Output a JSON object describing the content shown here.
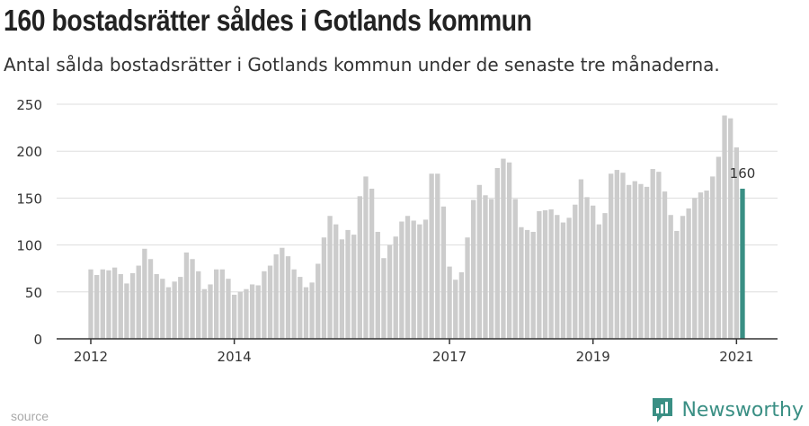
{
  "title": "160 bostadsrätter såldes i Gotlands kommun",
  "subtitle": "Antal sålda bostadsrätter i Gotlands kommun under de senaste tre månaderna.",
  "source_label": "source",
  "brand": "Newsworthy",
  "colors": {
    "bar": "#cccccc",
    "highlight": "#3a8f84",
    "axis": "#333333",
    "grid": "#dddddd"
  },
  "chart_data": {
    "type": "bar",
    "ylim": [
      0,
      250
    ],
    "yticks": [
      0,
      50,
      100,
      150,
      200,
      250
    ],
    "xticks": [
      {
        "label": "2012",
        "index": 0
      },
      {
        "label": "2014",
        "index": 24
      },
      {
        "label": "2017",
        "index": 60
      },
      {
        "label": "2019",
        "index": 84
      },
      {
        "label": "2021",
        "index": 108
      }
    ],
    "values": [
      74,
      68,
      74,
      73,
      76,
      69,
      59,
      70,
      78,
      96,
      85,
      69,
      64,
      55,
      61,
      66,
      92,
      85,
      72,
      53,
      58,
      74,
      74,
      64,
      47,
      50,
      53,
      58,
      57,
      72,
      78,
      90,
      97,
      88,
      74,
      66,
      55,
      60,
      80,
      108,
      131,
      122,
      106,
      116,
      111,
      152,
      173,
      160,
      114,
      86,
      100,
      109,
      125,
      131,
      126,
      122,
      127,
      176,
      176,
      141,
      77,
      63,
      71,
      108,
      148,
      164,
      153,
      149,
      182,
      192,
      188,
      149,
      119,
      116,
      114,
      136,
      137,
      138,
      132,
      124,
      129,
      143,
      170,
      151,
      142,
      122,
      134,
      176,
      180,
      177,
      164,
      168,
      165,
      162,
      181,
      178,
      157,
      132,
      115,
      131,
      139,
      150,
      156,
      158,
      173,
      194,
      238,
      235,
      204,
      160
    ],
    "highlight_label": "160"
  }
}
